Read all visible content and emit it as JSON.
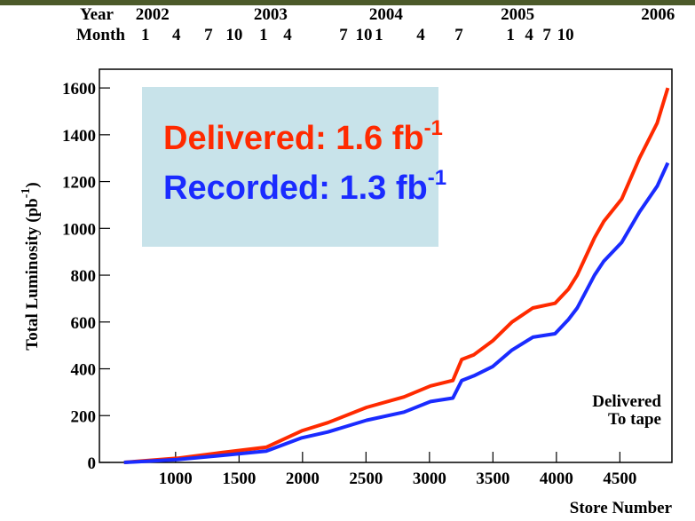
{
  "chart_data": {
    "type": "line",
    "x_label": "Store Number",
    "y_label": [
      "Total Luminosity (pb",
      "-1",
      ")"
    ],
    "x": [
      594,
      700,
      1014,
      1364,
      1714,
      1994,
      2200,
      2505,
      2800,
      3009,
      3184,
      3254,
      3350,
      3499,
      3650,
      3814,
      3989,
      4094,
      4164,
      4300,
      4374,
      4514,
      4654,
      4794,
      4878
    ],
    "series": [
      {
        "name": "Delivered",
        "color": "#ff2a00",
        "values": [
          0,
          5,
          18,
          42,
          65,
          135,
          170,
          235,
          280,
          327,
          350,
          440,
          460,
          520,
          600,
          660,
          680,
          740,
          800,
          960,
          1030,
          1125,
          1300,
          1450,
          1600
        ]
      },
      {
        "name": "To tape",
        "color": "#1a2bff",
        "values": [
          0,
          3,
          12,
          30,
          48,
          105,
          130,
          180,
          215,
          260,
          275,
          350,
          370,
          410,
          480,
          535,
          550,
          610,
          660,
          800,
          860,
          940,
          1070,
          1180,
          1280
        ]
      }
    ],
    "xlim": [
      400,
      4910
    ],
    "ylim": [
      0,
      1680
    ],
    "xticks": [
      1000,
      1500,
      2000,
      2500,
      3000,
      3500,
      4000,
      4500
    ],
    "yticks": [
      0,
      200,
      400,
      600,
      800,
      1000,
      1200,
      1400,
      1600
    ],
    "top_axis": {
      "year_title": "Year",
      "month_title": "Month",
      "years": [
        {
          "value": 762,
          "label": "2002"
        },
        {
          "value": 1693,
          "label": "2003"
        },
        {
          "value": 2602,
          "label": "2004"
        },
        {
          "value": 3638,
          "label": "2005"
        },
        {
          "value": 4744,
          "label": "2006"
        }
      ],
      "months": [
        {
          "value": 762,
          "label": "1"
        },
        {
          "value": 1007,
          "label": "4"
        },
        {
          "value": 1259,
          "label": "7"
        },
        {
          "value": 1462,
          "label": "10"
        },
        {
          "value": 1693,
          "label": "1"
        },
        {
          "value": 1882,
          "label": "4"
        },
        {
          "value": 2323,
          "label": "7"
        },
        {
          "value": 2484,
          "label": "10"
        },
        {
          "value": 2602,
          "label": "1"
        },
        {
          "value": 2931,
          "label": "4"
        },
        {
          "value": 3232,
          "label": "7"
        },
        {
          "value": 3638,
          "label": "1"
        },
        {
          "value": 3785,
          "label": "4"
        },
        {
          "value": 3925,
          "label": "7"
        },
        {
          "value": 4072,
          "label": "10"
        }
      ]
    },
    "grid": "x",
    "legend": "lower right",
    "annotations": [
      {
        "text": [
          "Delivered:  1.6 fb",
          "-1"
        ],
        "color": "#ff2a00"
      },
      {
        "text": [
          "Recorded:  1.3 fb",
          "-1"
        ],
        "color": "#1a2bff"
      }
    ],
    "annotation_box_color": "#c8e3ea"
  }
}
